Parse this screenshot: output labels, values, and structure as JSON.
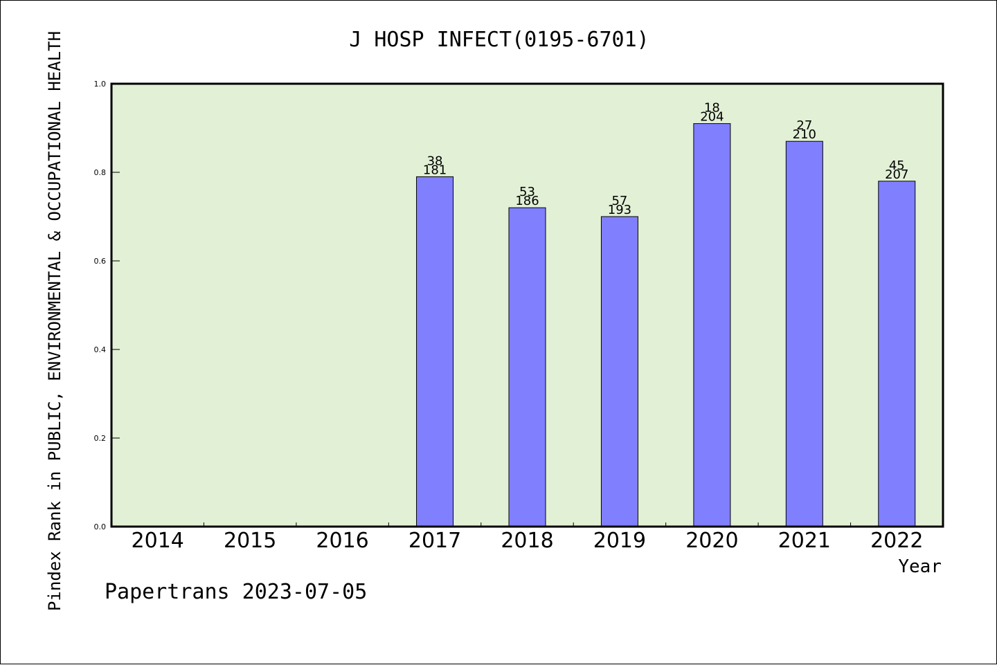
{
  "chart_data": {
    "type": "bar",
    "title": "J HOSP INFECT(0195-6701)",
    "xlabel": "Year",
    "ylabel": "Pindex Rank in PUBLIC, ENVIRONMENTAL & OCCUPATIONAL HEALTH",
    "categories": [
      "2014",
      "2015",
      "2016",
      "2017",
      "2018",
      "2019",
      "2020",
      "2021",
      "2022"
    ],
    "values": [
      null,
      null,
      null,
      0.79,
      0.72,
      0.7,
      0.91,
      0.87,
      0.78
    ],
    "rank_labels": [
      "",
      "",
      "",
      "38",
      "53",
      "57",
      "18",
      "27",
      "45"
    ],
    "total_labels": [
      "",
      "",
      "",
      "181",
      "186",
      "193",
      "204",
      "210",
      "207"
    ],
    "ylim": [
      0,
      1.0
    ],
    "yticks": [
      "0.0",
      "0.2",
      "0.4",
      "0.6",
      "0.8",
      "1.0"
    ],
    "grid": false,
    "bar_color": "#8080ff",
    "plot_background": "#e2f0d6"
  },
  "footer": {
    "watermark": "Papertrans 2023-07-05"
  }
}
